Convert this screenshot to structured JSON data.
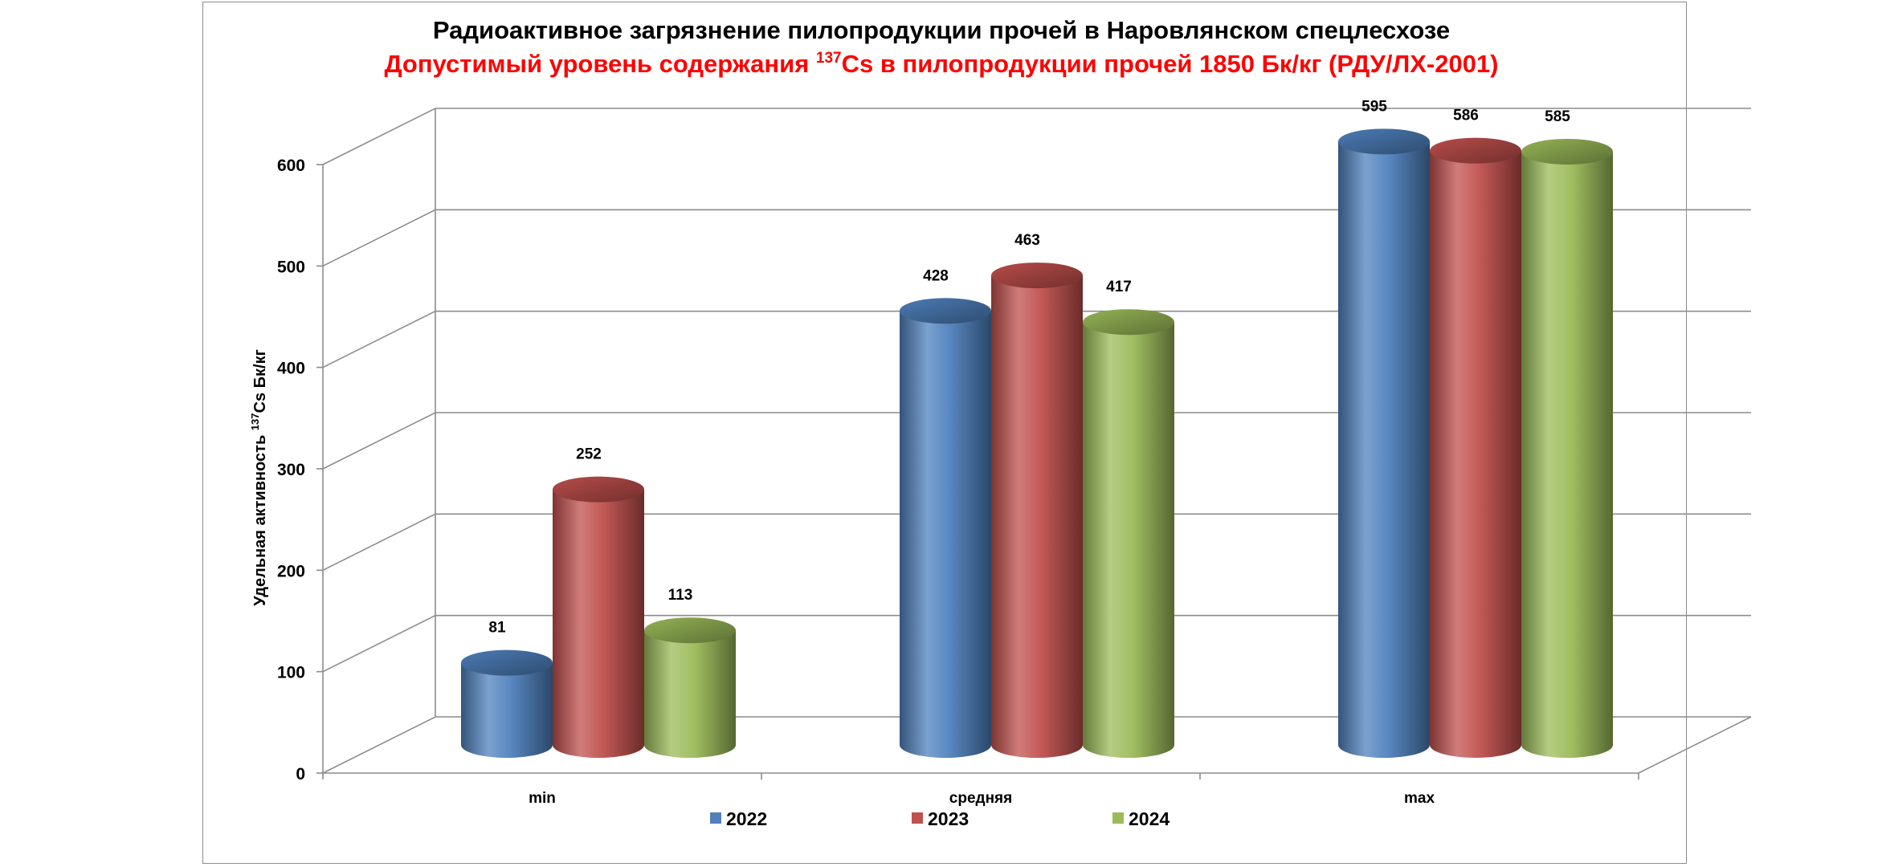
{
  "chart_data": {
    "type": "bar",
    "style": "3d-cylinder",
    "title": "Радиоактивное загрязнение пилопродукции прочей в Наровлянском спецлесхозе",
    "subtitle_pre": "Допустимый уровень содержания ",
    "subtitle_sup": "137",
    "subtitle_post": "Cs в пилопродукции прочей 1850 Бк/кг (РДУ/ЛХ-2001)",
    "ylabel_pre": "Удельная активность ",
    "ylabel_sup": "137",
    "ylabel_post": "Cs Бк/кг",
    "categories": [
      "min",
      "средняя",
      "max"
    ],
    "ylim": [
      0,
      600
    ],
    "yticks": [
      0,
      100,
      200,
      300,
      400,
      500,
      600
    ],
    "grid": true,
    "legend_position": "bottom",
    "series": [
      {
        "name": "2022",
        "color": "#4f81bd",
        "values": [
          81,
          428,
          595
        ]
      },
      {
        "name": "2023",
        "color": "#c0504d",
        "values": [
          252,
          463,
          586
        ]
      },
      {
        "name": "2024",
        "color": "#9bbb59",
        "values": [
          113,
          417,
          585
        ]
      }
    ]
  }
}
